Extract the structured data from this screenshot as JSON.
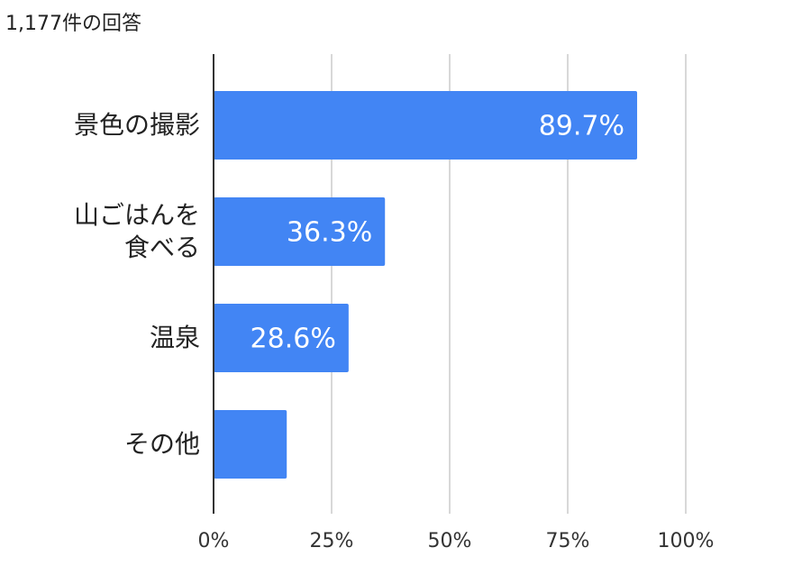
{
  "chart_data": {
    "type": "bar",
    "orientation": "horizontal",
    "subtitle": "1,177件の回答",
    "categories": [
      "景色の撮影",
      "山ごはんを\n食べる",
      "温泉",
      "その他"
    ],
    "values": [
      89.7,
      36.3,
      28.6,
      15.5
    ],
    "value_labels": [
      "89.7%",
      "36.3%",
      "28.6%",
      null
    ],
    "color": "#4285f4",
    "xlim": [
      0,
      100
    ],
    "xticks": [
      {
        "value": 0,
        "label": "0%"
      },
      {
        "value": 25,
        "label": "25%"
      },
      {
        "value": 50,
        "label": "50%"
      },
      {
        "value": 75,
        "label": "75%"
      },
      {
        "value": 100,
        "label": "100%"
      }
    ],
    "grid": true
  }
}
